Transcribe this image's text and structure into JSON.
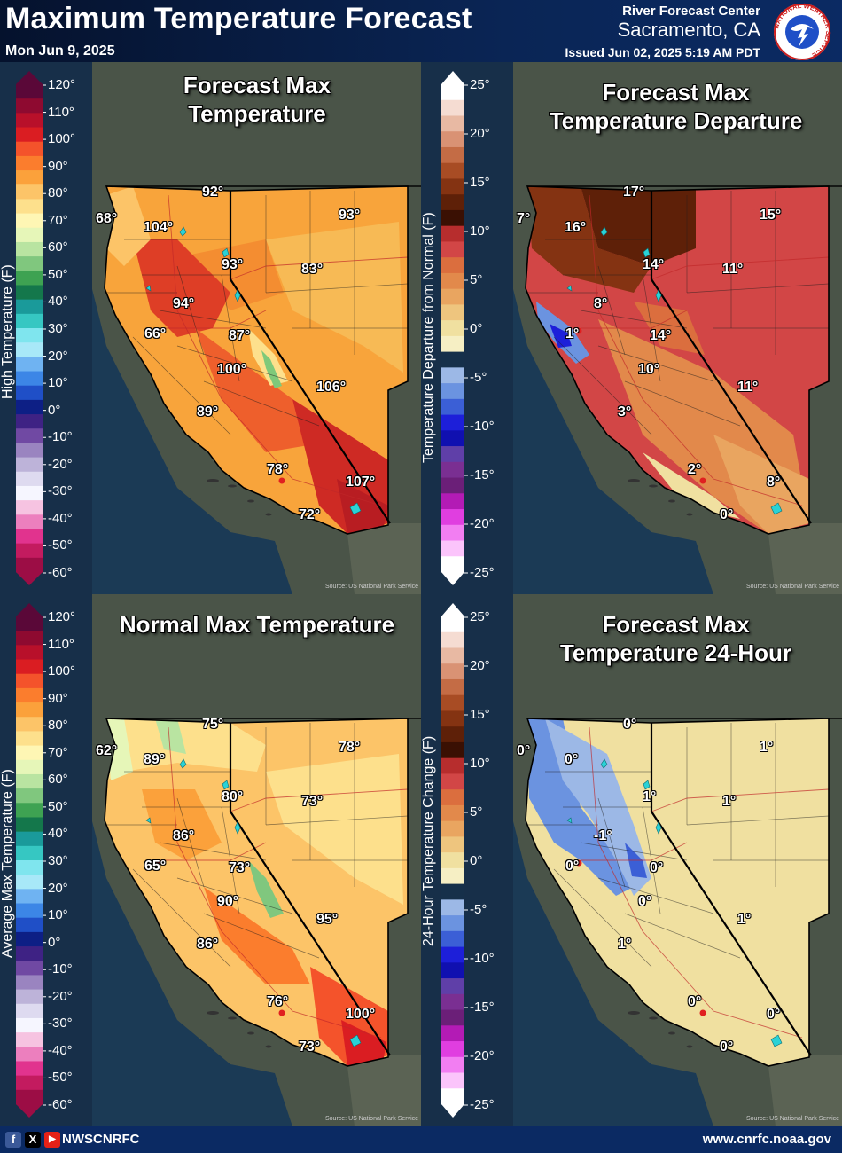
{
  "header": {
    "title": "Maximum Temperature Forecast",
    "date": "Mon Jun 9, 2025",
    "rfc_label": "River Forecast Center",
    "rfc_location": "Sacramento, CA",
    "issued": "Issued Jun 02, 2025 5:19 AM PDT",
    "logo_text": "NATIONAL WEATHER SERVICE"
  },
  "footer": {
    "social": [
      "f",
      "X",
      "▶"
    ],
    "handle": "NWSCNRFC",
    "website": "www.cnrfc.noaa.gov"
  },
  "colors": {
    "ocean": "#1b3a55",
    "land_outside": "#4a5448",
    "background": "#173352"
  },
  "scales": {
    "temperature": {
      "ticks": [
        "120°",
        "110°",
        "100°",
        "90°",
        "80°",
        "70°",
        "60°",
        "50°",
        "40°",
        "30°",
        "20°",
        "10°",
        "0°",
        "-10°",
        "-20°",
        "-30°",
        "-40°",
        "-50°",
        "-60°"
      ],
      "colors": [
        "#5a0838",
        "#8e0a30",
        "#b8102a",
        "#da1d22",
        "#f4532b",
        "#fb7d2d",
        "#fba13b",
        "#fcc468",
        "#fde08c",
        "#fef6b4",
        "#e6f6b8",
        "#b9e4a1",
        "#80c77e",
        "#3ea252",
        "#14774b",
        "#1a9a9a",
        "#36c7c2",
        "#7fe5ee",
        "#a8e8f8",
        "#6fb3f2",
        "#3c86e6",
        "#1f4fc7",
        "#0d1f85",
        "#3e2284",
        "#7049a3",
        "#9a84c0",
        "#bdb3d9",
        "#dedaf0",
        "#f6f6ff",
        "#f6c3e1",
        "#ec7fbe",
        "#e1338e",
        "#c31b5f",
        "#9c0d45"
      ]
    },
    "departure": {
      "ticks": [
        "25°",
        "20°",
        "15°",
        "10°",
        "5°",
        "0°",
        "-5°",
        "-10°",
        "-15°",
        "-20°",
        "-25°"
      ],
      "colors": [
        "#ffffff",
        "#f5dcd2",
        "#e8b9a3",
        "#d99274",
        "#c46c45",
        "#a84c24",
        "#843312",
        "#5e2008",
        "#3a1003",
        "#b72d2d",
        "#d24646",
        "#db6e3e",
        "#e2894b",
        "#e9a560",
        "#eec57e",
        "#f0e0a0",
        "#f6efc4",
        "#16304a",
        "#9cb8e6",
        "#6b93e0",
        "#3b5fd6",
        "#1d1fd9",
        "#1010b0",
        "#5f3fa8",
        "#7a2f92",
        "#6b1f78",
        "#b31bb5",
        "#e03ee0",
        "#f27ef2",
        "#fbc4fb",
        "#ffffff"
      ]
    }
  },
  "panels": [
    {
      "id": "forecast",
      "title_lines": [
        "Forecast Max",
        "Temperature"
      ],
      "colorbar_title": "High Temperature (F)",
      "colorbar": "temperature",
      "source": "Source: US National Park Service",
      "labels": [
        "68°",
        "104°",
        "92°",
        "93°",
        "93°",
        "83°",
        "94°",
        "66°",
        "87°",
        "100°",
        "106°",
        "89°",
        "78°",
        "107°",
        "72°"
      ]
    },
    {
      "id": "departure",
      "title_lines": [
        "Forecast Max",
        "Temperature Departure"
      ],
      "colorbar_title": "Temperature Departure from Normal (F)",
      "colorbar": "departure",
      "source": "Source: US National Park Service",
      "labels": [
        "7°",
        "16°",
        "17°",
        "15°",
        "14°",
        "11°",
        "8°",
        "1°",
        "14°",
        "10°",
        "11°",
        "3°",
        "2°",
        "8°",
        "0°"
      ]
    },
    {
      "id": "normal",
      "title_lines": [
        "Normal Max Temperature"
      ],
      "colorbar_title": "Average Max Temperature (F)",
      "colorbar": "temperature",
      "source": "Source: US National Park Service",
      "labels": [
        "62°",
        "89°",
        "75°",
        "78°",
        "80°",
        "73°",
        "86°",
        "65°",
        "73°",
        "90°",
        "95°",
        "86°",
        "76°",
        "100°",
        "73°"
      ]
    },
    {
      "id": "change",
      "title_lines": [
        "Forecast Max",
        "Temperature 24-Hour"
      ],
      "colorbar_title": "24-Hour Temperature Change (F)",
      "colorbar": "departure",
      "source": "Source: US National Park Service",
      "labels": [
        "0°",
        "0°",
        "0°",
        "1°",
        "1°",
        "1°",
        "-1°",
        "0°",
        "0°",
        "0°",
        "1°",
        "1°",
        "0°",
        "0°",
        "0°"
      ]
    }
  ]
}
